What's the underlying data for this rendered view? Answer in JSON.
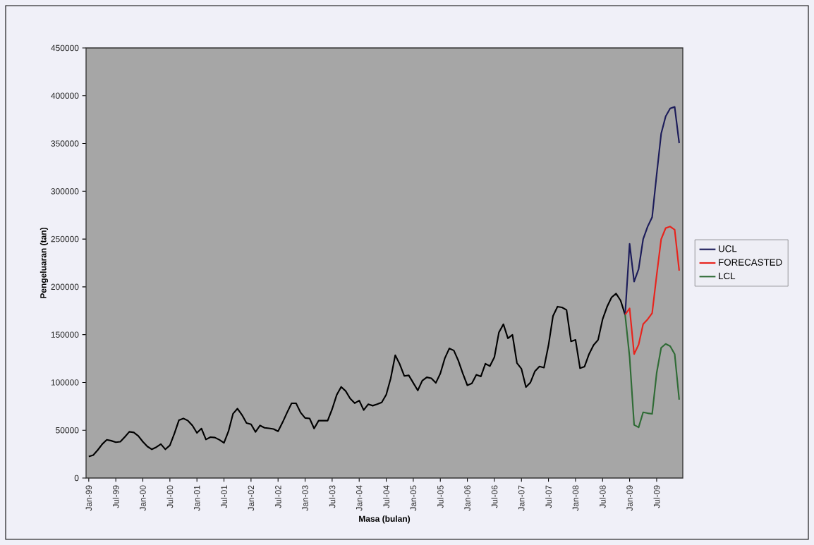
{
  "chart_data": {
    "type": "line",
    "xlabel": "Masa (bulan)",
    "ylabel": "Pengeluaran (tan)",
    "categories": [
      "Jan-99",
      null,
      null,
      null,
      null,
      null,
      "Jul-99",
      null,
      null,
      null,
      null,
      null,
      "Jan-00",
      null,
      null,
      null,
      null,
      null,
      "Jul-00",
      null,
      null,
      null,
      null,
      null,
      "Jan-01",
      null,
      null,
      null,
      null,
      null,
      "Jul-01",
      null,
      null,
      null,
      null,
      null,
      "Jan-02",
      null,
      null,
      null,
      null,
      null,
      "Jul-02",
      null,
      null,
      null,
      null,
      null,
      "Jan-03",
      null,
      null,
      null,
      null,
      null,
      "Jul-03",
      null,
      null,
      null,
      null,
      null,
      "Jan-04",
      null,
      null,
      null,
      null,
      null,
      "Jul-04",
      null,
      null,
      null,
      null,
      null,
      "Jan-05",
      null,
      null,
      null,
      null,
      null,
      "Jul-05",
      null,
      null,
      null,
      null,
      null,
      "Jan-06",
      null,
      null,
      null,
      null,
      null,
      "Jul-06",
      null,
      null,
      null,
      null,
      null,
      "Jan-07",
      null,
      null,
      null,
      null,
      null,
      "Jul-07",
      null,
      null,
      null,
      null,
      null,
      "Jan-08",
      null,
      null,
      null,
      null,
      null,
      "Jul-08",
      null,
      null,
      null,
      null,
      null,
      "Jan-09",
      null,
      null,
      null,
      null,
      null,
      "Jul-09",
      null,
      null,
      null,
      null,
      null
    ],
    "ylim": [
      0,
      450000
    ],
    "yticks": [
      0,
      50000,
      100000,
      150000,
      200000,
      250000,
      300000,
      350000,
      400000,
      450000
    ],
    "grid": false,
    "legend": "right",
    "marker": "none",
    "line_style": "solid",
    "series": [
      {
        "color": "#000000",
        "values": [
          22500,
          24000,
          29300,
          35500,
          40000,
          39000,
          37400,
          38000,
          43000,
          48400,
          47700,
          44000,
          38000,
          33000,
          30000,
          32300,
          35500,
          30000,
          34200,
          46500,
          60400,
          62300,
          60000,
          55000,
          47200,
          51800,
          40300,
          42800,
          42300,
          39900,
          36700,
          48900,
          67200,
          72600,
          66000,
          57500,
          56200,
          48200,
          55000,
          52600,
          52000,
          51300,
          48900,
          58200,
          68500,
          78200,
          78200,
          68500,
          62800,
          62300,
          51800,
          60000,
          60000,
          60000,
          72100,
          86800,
          95400,
          91000,
          83200,
          78300,
          81100,
          71100,
          77200,
          75700,
          77200,
          79100,
          87200,
          104400,
          128500,
          119100,
          106800,
          107400,
          99500,
          91600,
          101900,
          105400,
          104400,
          99500,
          109300,
          125300,
          135600,
          133400,
          122800,
          109300,
          97000,
          99000,
          108000,
          106300,
          119600,
          117100,
          126500,
          152300,
          160900,
          146200,
          149900,
          120400,
          114200,
          95100,
          100000,
          111800,
          116700,
          115500,
          138800,
          169500,
          179300,
          178500,
          175800,
          142900,
          144500,
          114900,
          116600,
          129700,
          139000,
          144500,
          166000,
          179200,
          189000,
          193000,
          185700,
          170900,
          null,
          null,
          null,
          null,
          null,
          null,
          null,
          null,
          null,
          null,
          null,
          null
        ]
      },
      {
        "name": "UCL",
        "color": "#1c1c5a",
        "values": [
          null,
          null,
          null,
          null,
          null,
          null,
          null,
          null,
          null,
          null,
          null,
          null,
          null,
          null,
          null,
          null,
          null,
          null,
          null,
          null,
          null,
          null,
          null,
          null,
          null,
          null,
          null,
          null,
          null,
          null,
          null,
          null,
          null,
          null,
          null,
          null,
          null,
          null,
          null,
          null,
          null,
          null,
          null,
          null,
          null,
          null,
          null,
          null,
          null,
          null,
          null,
          null,
          null,
          null,
          null,
          null,
          null,
          null,
          null,
          null,
          null,
          null,
          null,
          null,
          null,
          null,
          null,
          null,
          null,
          null,
          null,
          null,
          null,
          null,
          null,
          null,
          null,
          null,
          null,
          null,
          null,
          null,
          null,
          null,
          null,
          null,
          null,
          null,
          null,
          null,
          null,
          null,
          null,
          null,
          null,
          null,
          null,
          null,
          null,
          null,
          null,
          null,
          null,
          null,
          null,
          null,
          null,
          null,
          null,
          null,
          null,
          null,
          null,
          null,
          null,
          null,
          null,
          null,
          null,
          170900,
          245000,
          205500,
          218700,
          249900,
          263100,
          273000,
          317500,
          360300,
          378500,
          386700,
          388300,
          350400
        ]
      },
      {
        "name": "FORECASTED",
        "color": "#e8231c",
        "values": [
          null,
          null,
          null,
          null,
          null,
          null,
          null,
          null,
          null,
          null,
          null,
          null,
          null,
          null,
          null,
          null,
          null,
          null,
          null,
          null,
          null,
          null,
          null,
          null,
          null,
          null,
          null,
          null,
          null,
          null,
          null,
          null,
          null,
          null,
          null,
          null,
          null,
          null,
          null,
          null,
          null,
          null,
          null,
          null,
          null,
          null,
          null,
          null,
          null,
          null,
          null,
          null,
          null,
          null,
          null,
          null,
          null,
          null,
          null,
          null,
          null,
          null,
          null,
          null,
          null,
          null,
          null,
          null,
          null,
          null,
          null,
          null,
          null,
          null,
          null,
          null,
          null,
          null,
          null,
          null,
          null,
          null,
          null,
          null,
          null,
          null,
          null,
          null,
          null,
          null,
          null,
          null,
          null,
          null,
          null,
          null,
          null,
          null,
          null,
          null,
          null,
          null,
          null,
          null,
          null,
          null,
          null,
          null,
          null,
          null,
          null,
          null,
          null,
          null,
          null,
          null,
          null,
          null,
          null,
          170900,
          177500,
          129700,
          139600,
          161000,
          166000,
          172500,
          212100,
          249900,
          261500,
          263100,
          259800,
          216900
        ]
      },
      {
        "name": "LCL",
        "color": "#2f6b35",
        "values": [
          null,
          null,
          null,
          null,
          null,
          null,
          null,
          null,
          null,
          null,
          null,
          null,
          null,
          null,
          null,
          null,
          null,
          null,
          null,
          null,
          null,
          null,
          null,
          null,
          null,
          null,
          null,
          null,
          null,
          null,
          null,
          null,
          null,
          null,
          null,
          null,
          null,
          null,
          null,
          null,
          null,
          null,
          null,
          null,
          null,
          null,
          null,
          null,
          null,
          null,
          null,
          null,
          null,
          null,
          null,
          null,
          null,
          null,
          null,
          null,
          null,
          null,
          null,
          null,
          null,
          null,
          null,
          null,
          null,
          null,
          null,
          null,
          null,
          null,
          null,
          null,
          null,
          null,
          null,
          null,
          null,
          null,
          null,
          null,
          null,
          null,
          null,
          null,
          null,
          null,
          null,
          null,
          null,
          null,
          null,
          null,
          null,
          null,
          null,
          null,
          null,
          null,
          null,
          null,
          null,
          null,
          null,
          null,
          null,
          null,
          null,
          null,
          null,
          null,
          null,
          null,
          null,
          null,
          null,
          170900,
          126400,
          55600,
          53000,
          68800,
          67800,
          67100,
          109900,
          136300,
          140300,
          137900,
          129700,
          81900
        ]
      }
    ]
  }
}
